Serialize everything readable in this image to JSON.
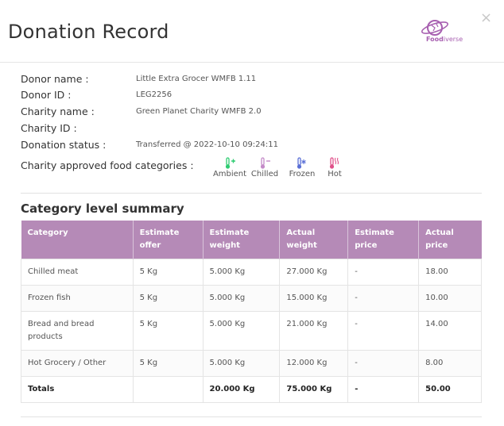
{
  "header": {
    "title": "Donation Record",
    "logo_text_bold": "Food",
    "logo_text_light": "iverse",
    "close_label": "×"
  },
  "donor": {
    "name_label": "Donor name :",
    "name_value": "Little Extra Grocer WMFB 1.11",
    "id_label": "Donor ID :",
    "id_value": "LEG2256",
    "charity_name_label": "Charity name :",
    "charity_name_value": "Green Planet Charity WMFB 2.0",
    "charity_id_label": "Charity ID :",
    "charity_id_value": "",
    "status_label": "Donation status :",
    "status_value": "Transferred @ 2022-10-10 09:24:11",
    "categories_label": "Charity approved food categories :"
  },
  "food_categories": [
    {
      "label": "Ambient",
      "icon": "ambient-thermometer-icon",
      "color": "#2ecc71"
    },
    {
      "label": "Chilled",
      "icon": "chilled-thermometer-icon",
      "color": "#c48ac8"
    },
    {
      "label": "Frozen",
      "icon": "frozen-thermometer-icon",
      "color": "#5a6fd6"
    },
    {
      "label": "Hot",
      "icon": "hot-thermometer-icon",
      "color": "#e0508a"
    }
  ],
  "summary": {
    "title": "Category level summary",
    "headers": [
      "Category",
      "Estimate offer",
      "Estimate weight",
      "Actual weight",
      "Estimate price",
      "Actual price"
    ],
    "rows": [
      [
        "Chilled meat",
        "5 Kg",
        "5.000 Kg",
        "27.000 Kg",
        "-",
        "18.00"
      ],
      [
        "Frozen fish",
        "5 Kg",
        "5.000 Kg",
        "15.000 Kg",
        "-",
        "10.00"
      ],
      [
        "Bread and bread products",
        "5 Kg",
        "5.000 Kg",
        "21.000 Kg",
        "-",
        "14.00"
      ],
      [
        "Hot Grocery / Other",
        "5 Kg",
        "5.000 Kg",
        "12.000 Kg",
        "-",
        "8.00"
      ]
    ],
    "totals": [
      "Totals",
      "",
      "20.000 Kg",
      "75.000 Kg",
      "-",
      "50.00"
    ]
  },
  "colors": {
    "table_header": "#b58ab7",
    "brand": "#a75fb0"
  }
}
